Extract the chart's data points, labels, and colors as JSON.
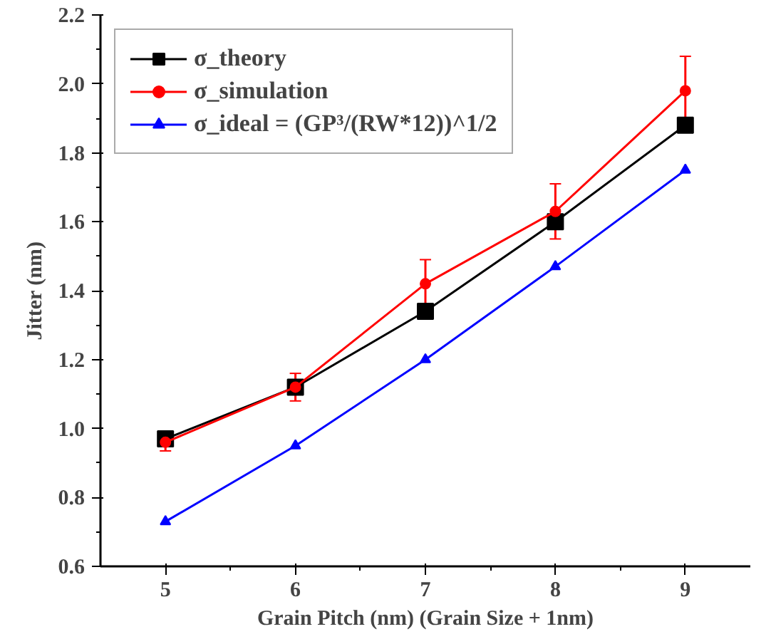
{
  "chart_data": {
    "type": "line",
    "xlabel": "Grain Pitch (nm) (Grain Size + 1nm)",
    "ylabel": "Jitter (nm)",
    "x": [
      5,
      6,
      7,
      8,
      9
    ],
    "series": [
      {
        "name": "σ_theory",
        "color": "#000000",
        "marker": "square",
        "values": [
          0.97,
          1.12,
          1.34,
          1.6,
          1.88
        ]
      },
      {
        "name": "σ_simulation",
        "color": "#ff0000",
        "marker": "circle",
        "values": [
          0.96,
          1.12,
          1.42,
          1.63,
          1.98
        ],
        "errors": [
          0.025,
          0.04,
          0.07,
          0.08,
          0.1
        ]
      },
      {
        "name": "σ_ideal = (GP³/(RW*12))^1/2",
        "color": "#0000ff",
        "marker": "triangle",
        "values": [
          0.73,
          0.95,
          1.2,
          1.47,
          1.75
        ]
      }
    ],
    "xlim": [
      4.5,
      9.5
    ],
    "xticks": [
      5,
      6,
      7,
      8,
      9
    ],
    "ylim": [
      0.6,
      2.2
    ],
    "yticks": [
      {
        "value": 0.6,
        "label": "0.6"
      },
      {
        "value": 0.8,
        "label": "0.8"
      },
      {
        "value": 1.0,
        "label": "1.0"
      },
      {
        "value": 1.2,
        "label": "1.2"
      },
      {
        "value": 1.4,
        "label": "1.4"
      },
      {
        "value": 1.6,
        "label": "1.6"
      },
      {
        "value": 1.8,
        "label": "1.8"
      },
      {
        "value": 2.0,
        "label": "2.0"
      },
      {
        "value": 2.2,
        "label": "2.2"
      }
    ],
    "grid": false,
    "legend": "top left",
    "line_style": "solid"
  }
}
